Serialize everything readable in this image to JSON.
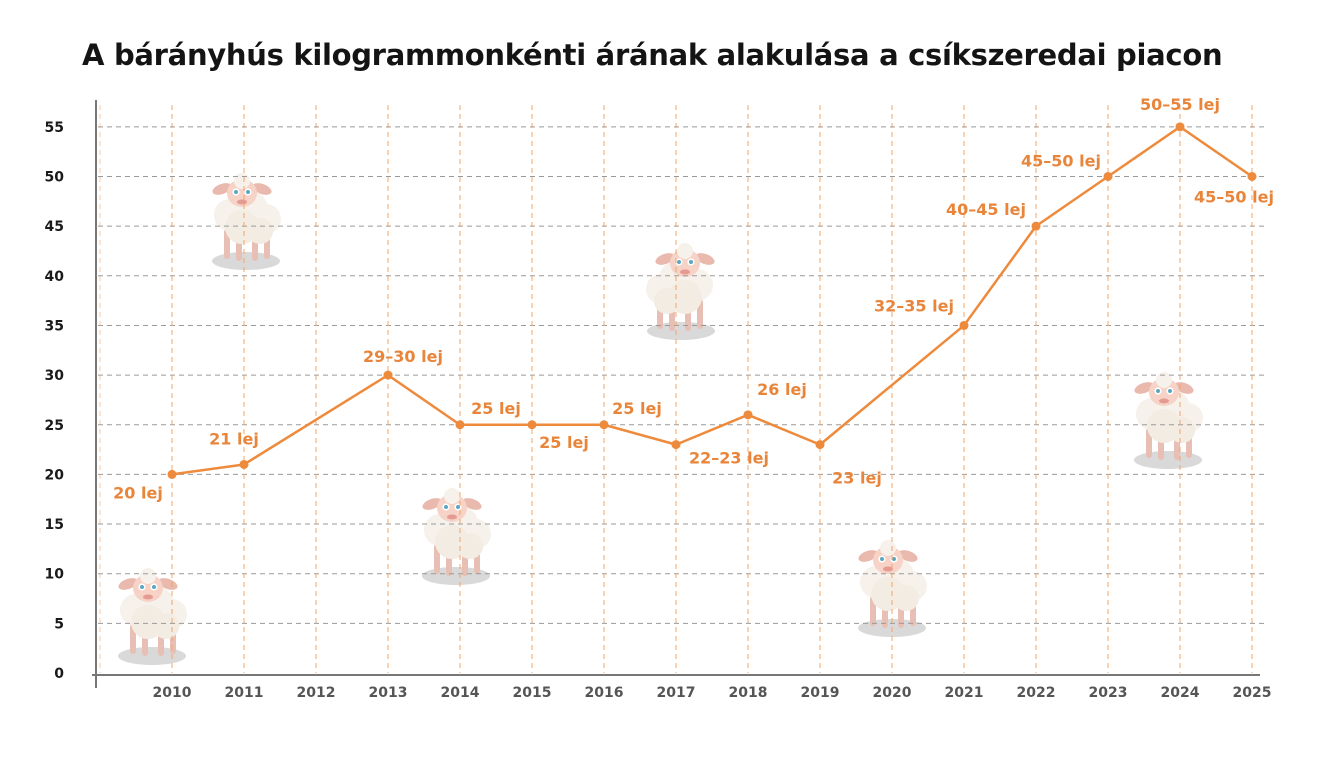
{
  "chart_data": {
    "type": "line",
    "title": "A bárányhús kilogrammonkénti árának alakulása a csíkszeredai piacon",
    "xlabel": "",
    "ylabel": "",
    "categories": [
      "2010",
      "2011",
      "2012",
      "2013",
      "2014",
      "2015",
      "2016",
      "2017",
      "2018",
      "2019",
      "2020",
      "2021",
      "2022",
      "2023",
      "2024",
      "2025"
    ],
    "series": [
      {
        "values": [
          20,
          21,
          null,
          30,
          25,
          25,
          25,
          23,
          26,
          23,
          null,
          35,
          45,
          50,
          55,
          50
        ],
        "labels": [
          "20 lej",
          "21 lej",
          "",
          "29–30 lej",
          "25 lej",
          "25 lej",
          "25 lej",
          "22–23 lej",
          "26 lej",
          "23 lej",
          "",
          "32–35 lej",
          "40–45 lej",
          "45–50 lej",
          "50–55 lej",
          "45–50 lej"
        ]
      }
    ],
    "yticks": [
      0,
      5,
      10,
      15,
      20,
      25,
      30,
      35,
      40,
      45,
      50,
      55
    ],
    "ylim": [
      0,
      55
    ],
    "grid": true,
    "legend": "none",
    "decorations": [
      "sheep-illustration"
    ]
  },
  "colors": {
    "line": "#ee8a3c",
    "label": "#e8853a",
    "grid_h": "#9a9a9a",
    "grid_v": "#f4a46a",
    "axis": "#777777"
  }
}
